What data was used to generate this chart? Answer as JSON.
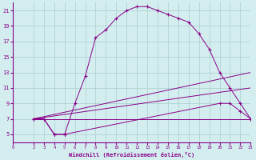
{
  "background_color": "#d4eef0",
  "grid_color": "#aacccc",
  "line_color": "#880088",
  "xlabel": "Windchill (Refroidissement éolien,°C)",
  "xlim": [
    0,
    23
  ],
  "ylim": [
    4,
    22
  ],
  "xticks": [
    0,
    2,
    3,
    4,
    5,
    6,
    7,
    8,
    9,
    10,
    11,
    12,
    13,
    14,
    15,
    16,
    17,
    18,
    19,
    20,
    21,
    22,
    23
  ],
  "yticks": [
    5,
    7,
    9,
    11,
    13,
    15,
    17,
    19,
    21
  ],
  "curve_bell_x": [
    2,
    3,
    4,
    5,
    6,
    7,
    8,
    9,
    10,
    11,
    12,
    13,
    14,
    15,
    16,
    17,
    18,
    19,
    20,
    21,
    22,
    23
  ],
  "curve_bell_y": [
    7,
    7,
    5,
    5,
    9,
    12.5,
    17.5,
    18.5,
    20,
    21,
    21.5,
    21.5,
    21,
    20.5,
    20,
    19.5,
    18,
    16,
    13,
    11,
    9,
    7
  ],
  "curve_low_x": [
    2,
    3,
    4,
    5,
    20,
    21,
    22,
    23
  ],
  "curve_low_y": [
    7,
    7,
    5,
    5,
    9,
    9,
    8,
    7
  ],
  "line1_x": [
    2,
    23
  ],
  "line1_y": [
    7,
    7
  ],
  "line2_x": [
    2,
    23
  ],
  "line2_y": [
    7,
    11
  ],
  "line3_x": [
    2,
    23
  ],
  "line3_y": [
    7,
    13
  ]
}
